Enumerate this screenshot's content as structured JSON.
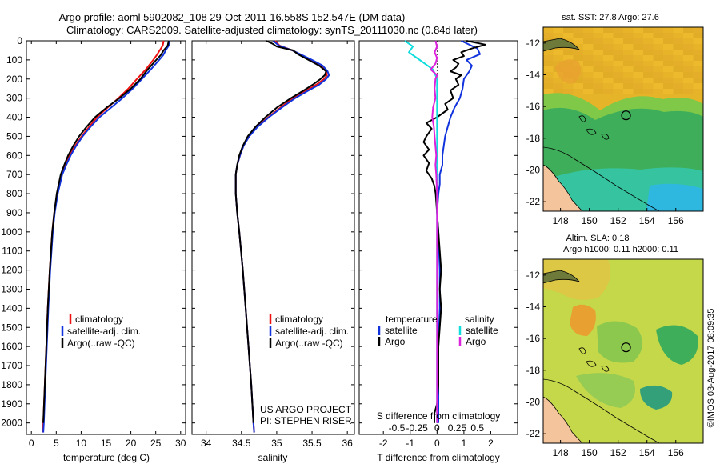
{
  "header": {
    "line1": "Argo profile: aoml 5902082_108 29-Oct-2011 16.558S 152.547E (DM data)",
    "line2": "Climatology: CARS2009. Satellite-adjusted climatology: synTS_20111030.nc (0.84d later)"
  },
  "depth_axis": {
    "ticks": [
      0,
      100,
      200,
      300,
      400,
      500,
      600,
      700,
      800,
      900,
      1000,
      1100,
      1200,
      1300,
      1400,
      1500,
      1600,
      1700,
      1800,
      1900,
      2000
    ],
    "range": [
      0,
      2060
    ]
  },
  "colors": {
    "clim": "#ee1111",
    "sat": "#1133dd",
    "argo": "#000000",
    "sal_sat": "#11dddd",
    "sal_argo": "#dd22dd"
  },
  "legend": {
    "climatology": "climatology",
    "satellite": "satellite-adj. clim.",
    "argo": "Argo(..raw -QC)"
  },
  "credits": {
    "project": "US ARGO PROJECT",
    "pi": "PI: STEPHEN RISER"
  },
  "watermark": "©IMOS 03-Aug-2017 08:09:35",
  "chart_data": [
    {
      "type": "line",
      "id": "temperature",
      "xlabel": "temperature (deg C)",
      "xlim": [
        -1,
        31
      ],
      "xticks": [
        0,
        5,
        10,
        15,
        20,
        25,
        30
      ],
      "ylim": [
        0,
        2060
      ],
      "y_inverted": true,
      "series": [
        {
          "name": "climatology",
          "color": "#ee1111",
          "depth": [
            0,
            25,
            50,
            75,
            100,
            150,
            200,
            250,
            300,
            350,
            400,
            450,
            500,
            550,
            600,
            650,
            700,
            800,
            900,
            1000,
            1200,
            1400,
            1600,
            1800,
            2000,
            2050
          ],
          "values": [
            26.6,
            26.4,
            25.8,
            25.2,
            24.5,
            23.0,
            21.2,
            19.5,
            17.5,
            15.3,
            13.2,
            11.6,
            10.1,
            8.8,
            7.7,
            6.8,
            6.0,
            5.2,
            4.6,
            4.2,
            3.7,
            3.3,
            3.0,
            2.7,
            2.4,
            2.3
          ]
        },
        {
          "name": "satellite",
          "color": "#1133dd",
          "depth": [
            0,
            25,
            50,
            75,
            100,
            150,
            200,
            250,
            300,
            350,
            400,
            450,
            500,
            550,
            600,
            650,
            700,
            800,
            900,
            1000,
            1200,
            1400,
            1600,
            1800,
            2000,
            2050
          ],
          "values": [
            27.8,
            27.6,
            27.0,
            26.5,
            25.7,
            24.0,
            22.2,
            20.4,
            18.3,
            16.0,
            13.7,
            11.9,
            10.3,
            9.0,
            7.9,
            7.0,
            6.2,
            5.3,
            4.7,
            4.3,
            3.8,
            3.4,
            3.1,
            2.8,
            2.5,
            2.4
          ]
        },
        {
          "name": "argo",
          "color": "#000000",
          "depth": [
            0,
            25,
            50,
            75,
            100,
            150,
            200,
            250,
            300,
            350,
            400,
            450,
            500,
            550,
            600,
            650,
            700,
            800,
            900,
            1000,
            1200,
            1400,
            1600,
            1800,
            2000
          ],
          "values": [
            27.6,
            27.4,
            26.6,
            26.0,
            25.1,
            23.4,
            21.9,
            20.0,
            17.7,
            15.1,
            12.8,
            11.1,
            9.6,
            8.4,
            7.4,
            6.6,
            5.9,
            5.1,
            4.6,
            4.2,
            3.7,
            3.3,
            3.0,
            2.7,
            2.4
          ]
        }
      ]
    },
    {
      "type": "line",
      "id": "salinity",
      "xlabel": "salinity",
      "xlim": [
        33.8,
        36.1
      ],
      "xticks": [
        34,
        34.5,
        35,
        35.5,
        36
      ],
      "ylim": [
        0,
        2060
      ],
      "y_inverted": true,
      "series": [
        {
          "name": "climatology",
          "color": "#ee1111",
          "depth": [
            0,
            25,
            50,
            100,
            130,
            160,
            180,
            200,
            230,
            260,
            300,
            350,
            400,
            450,
            500,
            550,
            600,
            650,
            700,
            800,
            900,
            1000,
            1200,
            1400,
            1600,
            1800,
            2000,
            2050
          ],
          "values": [
            34.98,
            35.04,
            35.22,
            35.48,
            35.62,
            35.7,
            35.71,
            35.67,
            35.56,
            35.42,
            35.23,
            35.05,
            34.88,
            34.72,
            34.61,
            34.53,
            34.48,
            34.44,
            34.42,
            34.42,
            34.44,
            34.47,
            34.52,
            34.56,
            34.6,
            34.64,
            34.67,
            34.68
          ]
        },
        {
          "name": "satellite",
          "color": "#1133dd",
          "depth": [
            0,
            25,
            50,
            100,
            130,
            160,
            180,
            200,
            230,
            260,
            300,
            350,
            400,
            450,
            500,
            550,
            600,
            650,
            700,
            800,
            900,
            1000,
            1200,
            1400,
            1600,
            1800,
            2000,
            2050
          ],
          "values": [
            34.95,
            35.03,
            35.22,
            35.5,
            35.65,
            35.72,
            35.74,
            35.7,
            35.6,
            35.45,
            35.26,
            35.07,
            34.89,
            34.73,
            34.61,
            34.53,
            34.48,
            34.44,
            34.42,
            34.42,
            34.44,
            34.47,
            34.52,
            34.56,
            34.6,
            34.64,
            34.67,
            34.68
          ]
        },
        {
          "name": "argo",
          "color": "#000000",
          "depth": [
            0,
            15,
            30,
            50,
            70,
            100,
            130,
            160,
            180,
            200,
            230,
            260,
            300,
            350,
            400,
            450,
            500,
            550,
            600,
            650,
            700,
            800,
            900,
            1000,
            1200,
            1400,
            1600,
            1800,
            2000
          ],
          "values": [
            34.85,
            34.94,
            35.0,
            35.23,
            35.3,
            35.45,
            35.6,
            35.7,
            35.68,
            35.62,
            35.51,
            35.38,
            35.2,
            35.0,
            34.84,
            34.7,
            34.59,
            34.52,
            34.47,
            34.44,
            34.42,
            34.42,
            34.44,
            34.47,
            34.52,
            34.56,
            34.6,
            34.64,
            34.67
          ]
        }
      ]
    },
    {
      "type": "line",
      "id": "difference",
      "xlabel": "T difference from climatology",
      "xlabel_top": "S difference from climatology",
      "xlim_T": [
        -2.9,
        3.0
      ],
      "xticks_T": [
        -2,
        -1,
        0,
        1,
        2
      ],
      "xticks_S": [
        -0.5,
        -0.25,
        0,
        0.25,
        0.5
      ],
      "xtick_labels_S": [
        "-0.5",
        "-0.25",
        "0",
        "0.25",
        "0.5"
      ],
      "s_to_t_scale": 3.0,
      "ylim": [
        0,
        2060
      ],
      "y_inverted": true,
      "legend_temperature_title": "temperature",
      "legend_salinity_title": "salinity",
      "legend_satellite": "satellite",
      "legend_argo": "Argo",
      "series": [
        {
          "name": "T satellite",
          "color": "#1133dd",
          "depth": [
            0,
            40,
            70,
            100,
            130,
            160,
            200,
            250,
            300,
            350,
            400,
            450,
            500,
            550,
            600,
            650,
            700,
            750,
            800,
            900,
            1000,
            1200,
            1400,
            1600,
            1800,
            2000
          ],
          "values": [
            0.9,
            1.5,
            1.6,
            1.1,
            1.3,
            1.2,
            1.0,
            0.95,
            0.85,
            0.65,
            0.5,
            0.4,
            0.3,
            0.25,
            0.2,
            0.2,
            0.1,
            0.1,
            0.05,
            0.0,
            0.05,
            0.1,
            0.1,
            0.05,
            0.05,
            0.05
          ]
        },
        {
          "name": "T argo",
          "color": "#000000",
          "depth": [
            0,
            20,
            40,
            60,
            80,
            100,
            120,
            140,
            160,
            180,
            200,
            230,
            260,
            300,
            330,
            360,
            400,
            430,
            460,
            500,
            530,
            570,
            600,
            640,
            680,
            720,
            760,
            800,
            900,
            1000,
            1100,
            1200,
            1300,
            1400,
            1500,
            1600,
            1700,
            1800,
            1900,
            1950,
            2000
          ],
          "values": [
            1.1,
            1.8,
            1.3,
            0.9,
            1.0,
            0.6,
            0.8,
            0.7,
            0.5,
            0.9,
            0.7,
            0.8,
            0.5,
            0.6,
            0.3,
            0.4,
            0.0,
            -0.4,
            -0.2,
            -0.4,
            -0.5,
            -0.3,
            -0.5,
            -0.3,
            -0.4,
            -0.2,
            -0.1,
            -0.05,
            0.0,
            0.05,
            0.1,
            0.15,
            0.1,
            0.15,
            0.1,
            0.05,
            0.05,
            0.05,
            0.0,
            -0.1,
            -0.1
          ]
        },
        {
          "name": "S satellite",
          "color": "#11dddd",
          "depth": [
            0,
            30,
            60,
            90,
            120,
            150,
            200,
            300,
            400,
            500,
            600,
            700,
            800,
            900,
            1000,
            1200,
            1400,
            1600,
            1800,
            2000
          ],
          "values": [
            -0.4,
            -0.3,
            -0.35,
            -0.25,
            -0.15,
            -0.05,
            0.0,
            0.0,
            0.0,
            0.0,
            0.0,
            0.0,
            0.0,
            0.0,
            0.0,
            0.0,
            0.0,
            0.0,
            0.0,
            0.0
          ]
        },
        {
          "name": "S argo",
          "color": "#dd22dd",
          "depth": [
            0,
            30,
            60,
            90,
            120,
            150,
            180,
            200,
            250,
            300,
            350,
            400,
            450,
            500,
            550,
            600,
            650,
            700,
            800,
            900,
            1000,
            1200,
            1400,
            1600,
            1800,
            2000
          ],
          "values": [
            -0.02,
            0.0,
            -0.03,
            0.0,
            -0.02,
            -0.08,
            0.0,
            -0.02,
            -0.03,
            -0.02,
            -0.05,
            -0.06,
            -0.04,
            -0.03,
            -0.02,
            -0.01,
            -0.02,
            -0.01,
            0.0,
            0.0,
            0.0,
            0.0,
            0.0,
            0.0,
            0.0,
            0.0
          ]
        }
      ]
    },
    {
      "type": "heatmap",
      "id": "sst_map",
      "title": "sat. SST: 27.8 Argo: 27.6",
      "lon_range": [
        146.8,
        157.9
      ],
      "lat_range": [
        -22.6,
        -11.0
      ],
      "xticks": [
        148,
        150,
        152,
        154,
        156
      ],
      "yticks": [
        -12,
        -14,
        -16,
        -18,
        -20,
        -22
      ],
      "ytick_labels": [
        "-12",
        "-14",
        "-16",
        "-18",
        "-20",
        "-22"
      ],
      "profile_location": {
        "lon": 152.547,
        "lat": -16.558
      }
    },
    {
      "type": "heatmap",
      "id": "sla_map",
      "title": "Altim. SLA: 0.18",
      "subtitle": "Argo h1000: 0.11 h2000: 0.11",
      "lon_range": [
        146.8,
        157.9
      ],
      "lat_range": [
        -22.6,
        -11.0
      ],
      "xticks": [
        148,
        150,
        152,
        154,
        156
      ],
      "yticks": [
        -12,
        -14,
        -16,
        -18,
        -20,
        -22
      ],
      "ytick_labels": [
        "-12",
        "-14",
        "-16",
        "-18",
        "-20",
        "-22"
      ],
      "profile_location": {
        "lon": 152.547,
        "lat": -16.558
      }
    }
  ]
}
